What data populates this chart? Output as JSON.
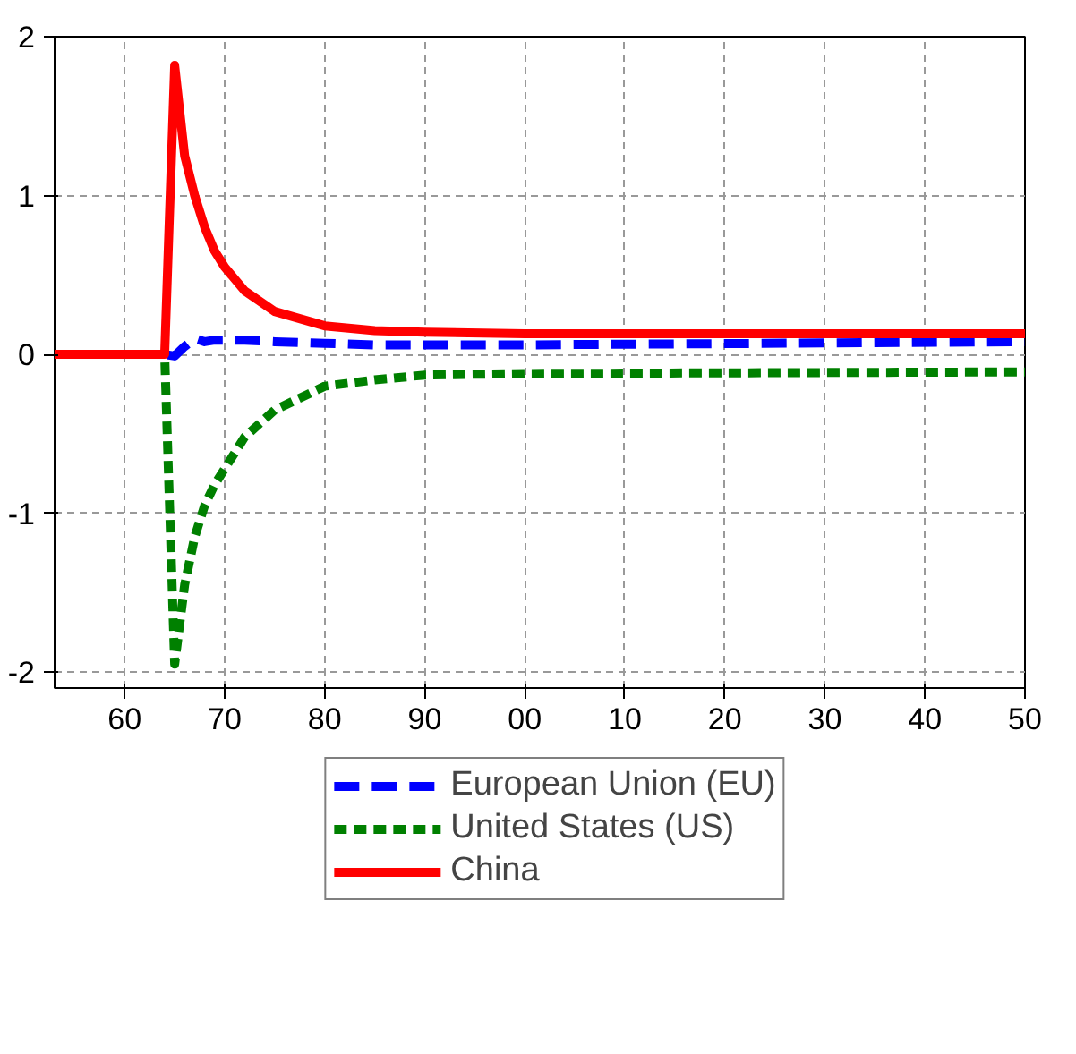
{
  "chart_data": {
    "type": "line",
    "x": [
      1953,
      1964,
      1965,
      1966,
      1967,
      1968,
      1969,
      1970,
      1972,
      1975,
      1980,
      1985,
      1990,
      2000,
      2050
    ],
    "series": [
      {
        "name": "European Union (EU)",
        "color": "#0000ff",
        "line_style": "dashed",
        "values": [
          0,
          0,
          -0.01,
          0.05,
          0.1,
          0.08,
          0.09,
          0.09,
          0.09,
          0.08,
          0.07,
          0.06,
          0.06,
          0.06,
          0.08
        ]
      },
      {
        "name": "United States (US)",
        "color": "#008000",
        "line_style": "dotted",
        "values": [
          0,
          0,
          -1.95,
          -1.45,
          -1.15,
          -0.95,
          -0.82,
          -0.72,
          -0.52,
          -0.35,
          -0.2,
          -0.16,
          -0.13,
          -0.12,
          -0.11
        ]
      },
      {
        "name": "China",
        "color": "#ff0000",
        "line_style": "solid",
        "values": [
          0,
          0,
          1.82,
          1.25,
          1.0,
          0.8,
          0.65,
          0.55,
          0.4,
          0.27,
          0.18,
          0.15,
          0.14,
          0.13,
          0.13
        ]
      }
    ],
    "xlim": [
      1953,
      2050
    ],
    "xticks": [
      {
        "value": 1960,
        "label": "60"
      },
      {
        "value": 1970,
        "label": "70"
      },
      {
        "value": 1980,
        "label": "80"
      },
      {
        "value": 1990,
        "label": "90"
      },
      {
        "value": 2000,
        "label": "00"
      },
      {
        "value": 2010,
        "label": "10"
      },
      {
        "value": 2020,
        "label": "20"
      },
      {
        "value": 2030,
        "label": "30"
      },
      {
        "value": 2040,
        "label": "40"
      },
      {
        "value": 2050,
        "label": "50"
      }
    ],
    "ylim": [
      -2.1,
      2.0
    ],
    "yticks": [
      -2,
      -1,
      0,
      1,
      2
    ],
    "grid": true,
    "legend": "bottom",
    "marker": "none"
  }
}
